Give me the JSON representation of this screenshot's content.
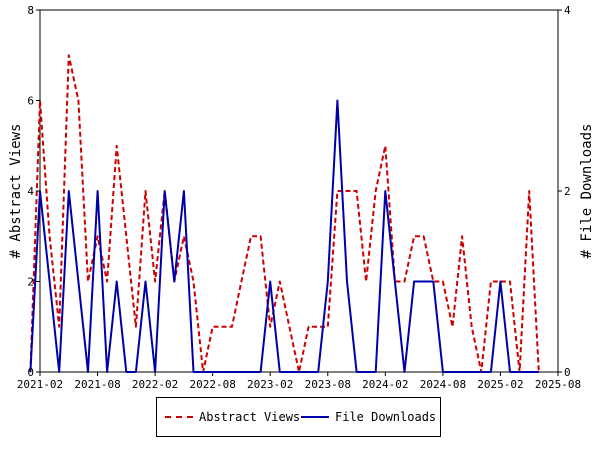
{
  "chart_data": {
    "type": "line",
    "xlabel": "",
    "ylabel": "# Abstract Views",
    "y2label": "# File Downloads",
    "x_ticks": [
      "2021-02",
      "2021-08",
      "2022-02",
      "2022-08",
      "2023-02",
      "2023-08",
      "2024-02",
      "2024-08",
      "2025-02",
      "2025-08"
    ],
    "ylim": [
      0,
      8
    ],
    "y_ticks": [
      0,
      2,
      4,
      6,
      8
    ],
    "y2lim": [
      0,
      4
    ],
    "y2_ticks": [
      0,
      2,
      4
    ],
    "grid": false,
    "legend_position": "bottom",
    "series": [
      {
        "name": "Abstract Views",
        "axis": "left",
        "color": "#cc0000",
        "style": "dashed",
        "x": [
          "2021-01",
          "2021-02",
          "2021-03",
          "2021-04",
          "2021-05",
          "2021-06",
          "2021-07",
          "2021-08",
          "2021-09",
          "2021-10",
          "2021-11",
          "2021-12",
          "2022-01",
          "2022-02",
          "2022-03",
          "2022-04",
          "2022-05",
          "2022-06",
          "2022-07",
          "2022-08",
          "2022-09",
          "2022-10",
          "2022-11",
          "2022-12",
          "2023-01",
          "2023-02",
          "2023-03",
          "2023-04",
          "2023-05",
          "2023-06",
          "2023-07",
          "2023-08",
          "2023-09",
          "2023-10",
          "2023-11",
          "2023-12",
          "2024-01",
          "2024-02",
          "2024-03",
          "2024-04",
          "2024-05",
          "2024-06",
          "2024-07",
          "2024-08",
          "2024-09",
          "2024-10",
          "2024-11",
          "2024-12",
          "2025-01",
          "2025-02",
          "2025-03",
          "2025-04",
          "2025-05",
          "2025-06"
        ],
        "values": [
          0,
          6,
          3,
          1,
          7,
          6,
          2,
          3,
          2,
          5,
          3,
          1,
          4,
          2,
          4,
          2,
          3,
          2,
          0,
          1,
          1,
          1,
          2,
          3,
          3,
          1,
          2,
          1,
          0,
          1,
          1,
          1,
          4,
          4,
          4,
          2,
          4,
          5,
          2,
          2,
          3,
          3,
          2,
          2,
          1,
          3,
          1,
          0,
          2,
          2,
          2,
          0,
          4,
          0
        ]
      },
      {
        "name": "File Downloads",
        "axis": "right",
        "color": "#0000aa",
        "style": "solid",
        "x": [
          "2021-01",
          "2021-02",
          "2021-03",
          "2021-04",
          "2021-05",
          "2021-06",
          "2021-07",
          "2021-08",
          "2021-09",
          "2021-10",
          "2021-11",
          "2021-12",
          "2022-01",
          "2022-02",
          "2022-03",
          "2022-04",
          "2022-05",
          "2022-06",
          "2022-07",
          "2022-08",
          "2022-09",
          "2022-10",
          "2022-11",
          "2022-12",
          "2023-01",
          "2023-02",
          "2023-03",
          "2023-04",
          "2023-05",
          "2023-06",
          "2023-07",
          "2023-08",
          "2023-09",
          "2023-10",
          "2023-11",
          "2023-12",
          "2024-01",
          "2024-02",
          "2024-03",
          "2024-04",
          "2024-05",
          "2024-06",
          "2024-07",
          "2024-08",
          "2024-09",
          "2024-10",
          "2024-11",
          "2024-12",
          "2025-01",
          "2025-02",
          "2025-03",
          "2025-04",
          "2025-05",
          "2025-06"
        ],
        "values": [
          0,
          2,
          1,
          0,
          2,
          1,
          0,
          2,
          0,
          1,
          0,
          0,
          1,
          0,
          2,
          1,
          2,
          0,
          0,
          0,
          0,
          0,
          0,
          0,
          0,
          1,
          0,
          0,
          0,
          0,
          0,
          1,
          3,
          1,
          0,
          0,
          0,
          2,
          1,
          0,
          1,
          1,
          1,
          0,
          0,
          0,
          0,
          0,
          0,
          1,
          0,
          0,
          0,
          0
        ]
      }
    ]
  }
}
